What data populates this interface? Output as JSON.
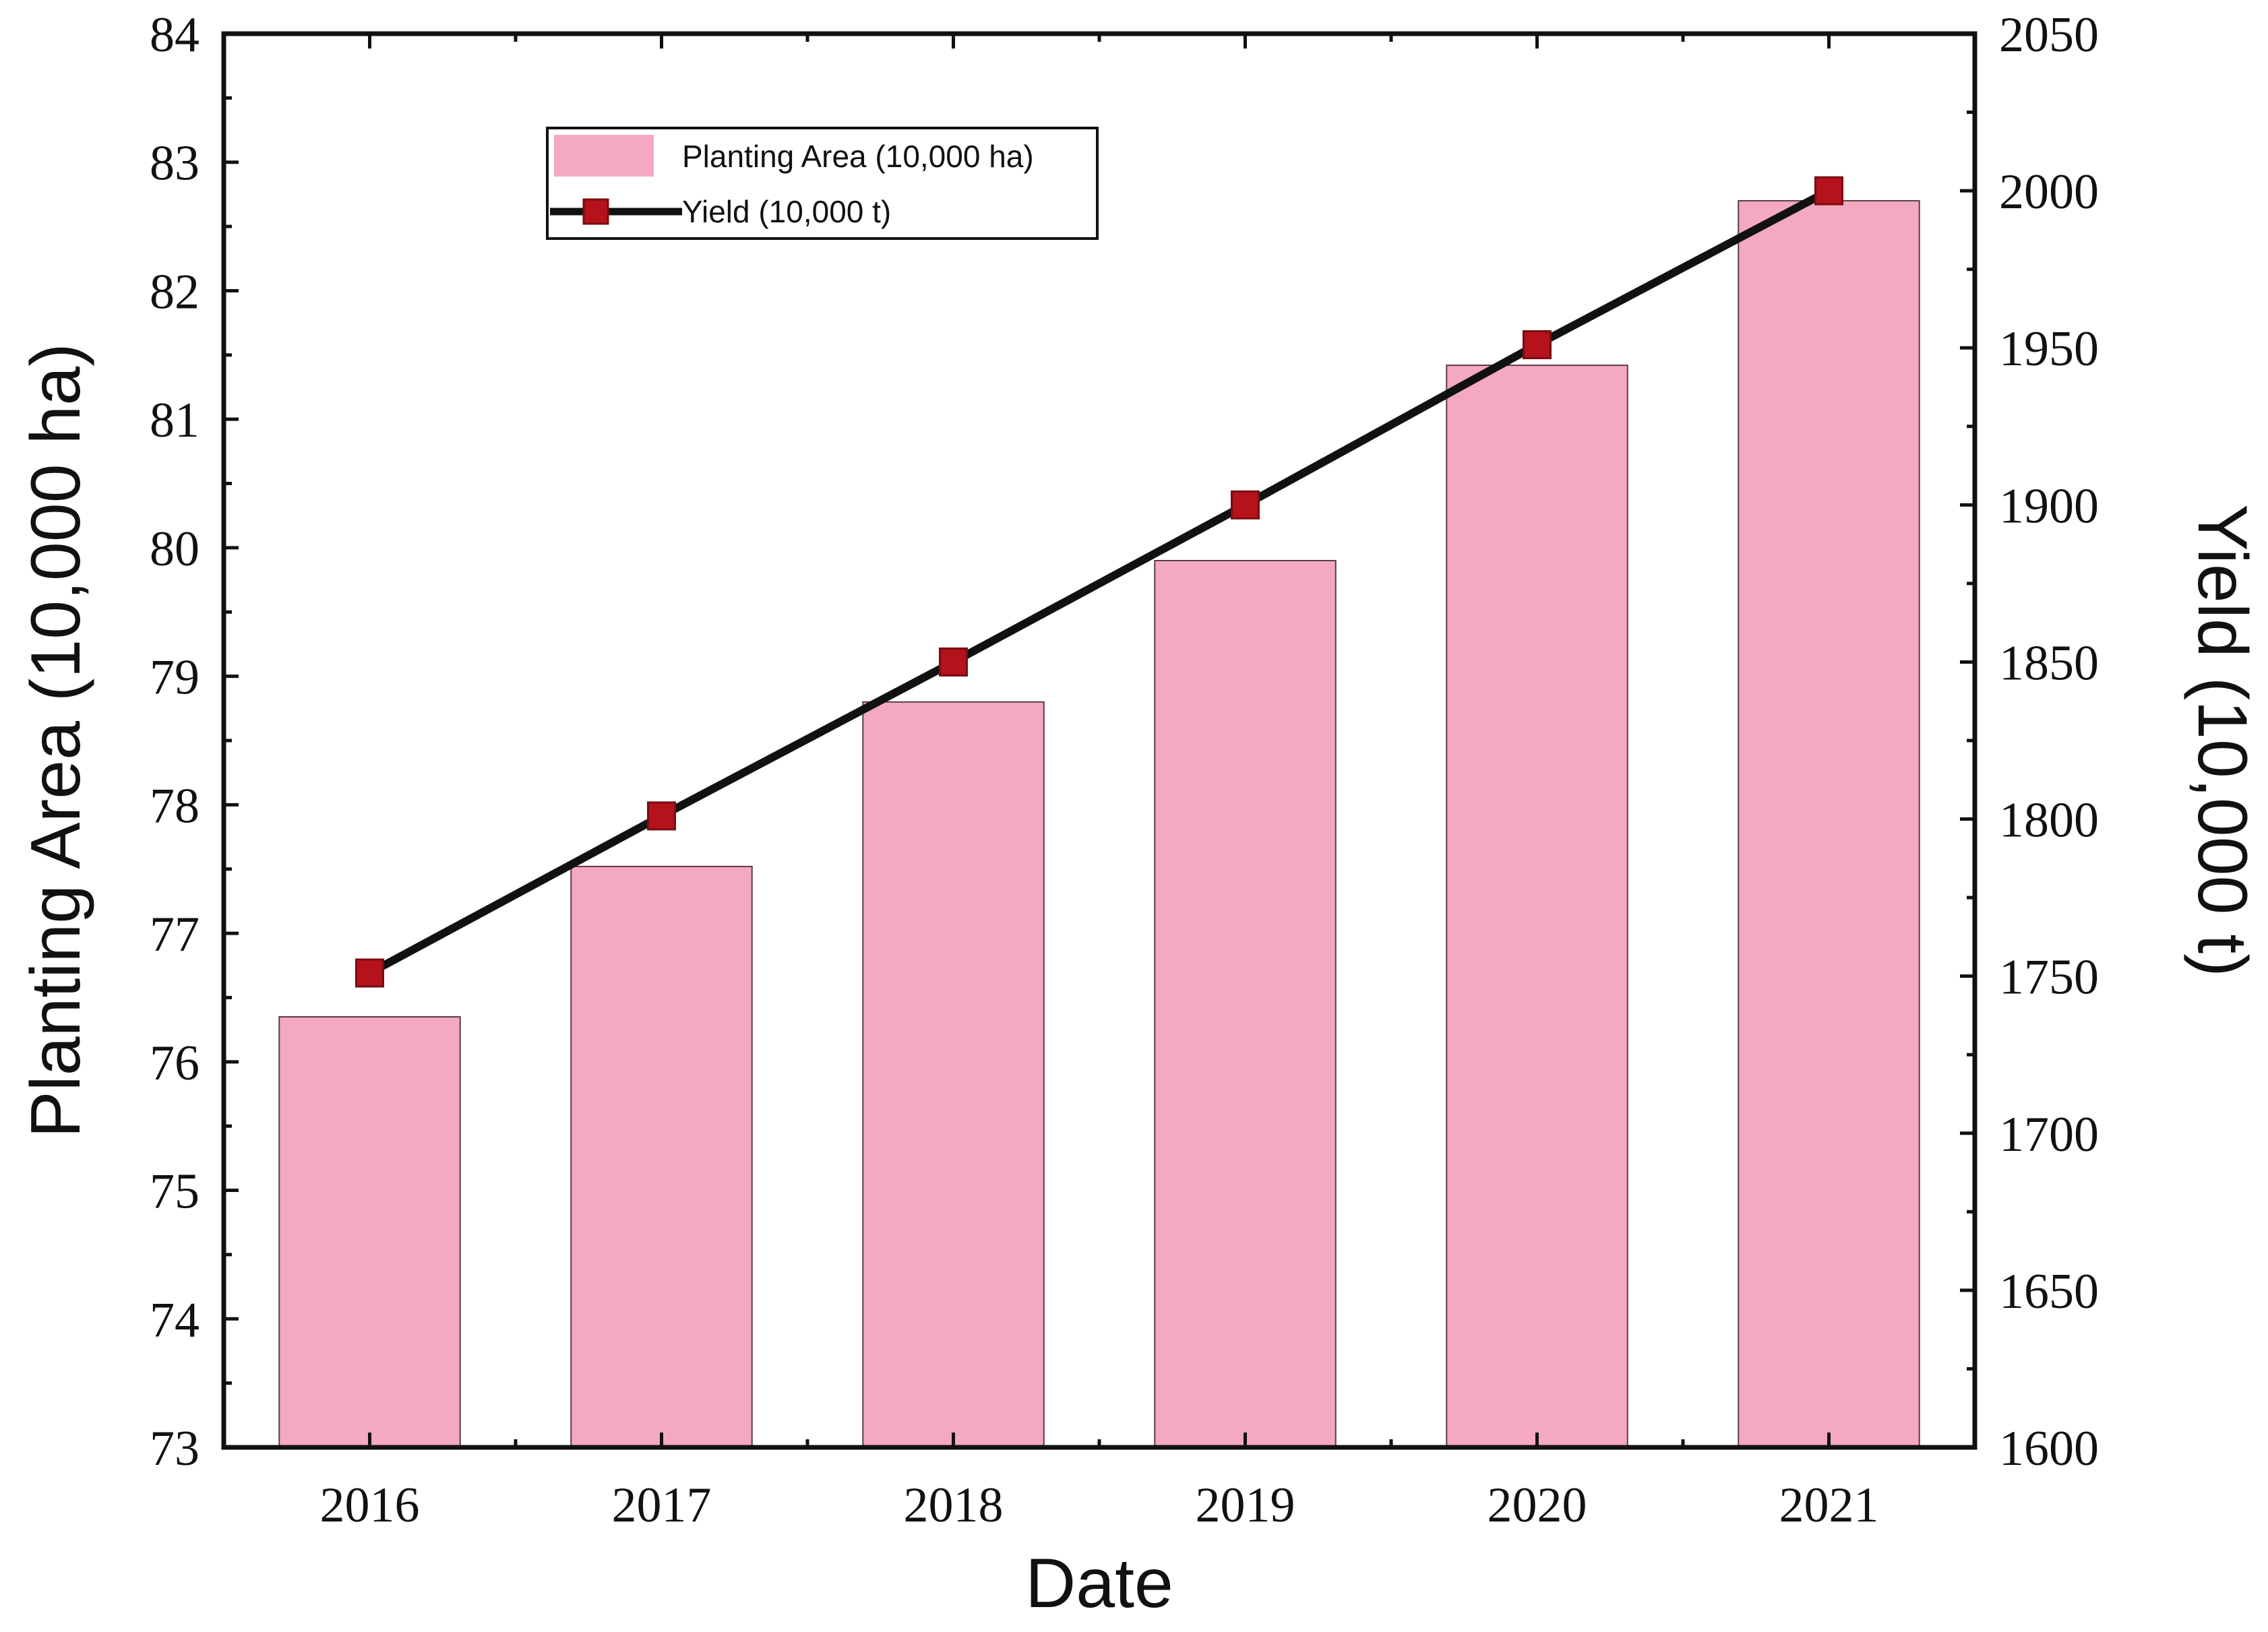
{
  "chart_data": {
    "type": "bar",
    "categories": [
      "2016",
      "2017",
      "2018",
      "2019",
      "2020",
      "2021"
    ],
    "series": [
      {
        "name": "Planting Area (10,000 ha)",
        "type": "bar",
        "axis": "left",
        "color": "#f4a9c0",
        "values": [
          76.35,
          77.52,
          78.8,
          79.9,
          81.42,
          82.7
        ]
      },
      {
        "name": "Yield (10,000 t)",
        "type": "line",
        "axis": "right",
        "color": "#b5121b",
        "line_color": "#111111",
        "marker": "square",
        "values": [
          1751,
          1801,
          1850,
          1900,
          1951,
          2000
        ]
      }
    ],
    "xlabel": "Date",
    "ylabel_left": "Planting Area (10,000 ha)",
    "ylabel_right": "Yield (10,000 t)",
    "ylim_left": [
      73,
      84
    ],
    "yticks_left": [
      "73",
      "74",
      "75",
      "76",
      "77",
      "78",
      "79",
      "80",
      "81",
      "82",
      "83",
      "84"
    ],
    "ylim_right": [
      1600,
      2050
    ],
    "yticks_right": [
      "1600",
      "1650",
      "1700",
      "1750",
      "1800",
      "1850",
      "1900",
      "1950",
      "2000",
      "2050"
    ],
    "grid": false,
    "legend_position": "top-left"
  }
}
